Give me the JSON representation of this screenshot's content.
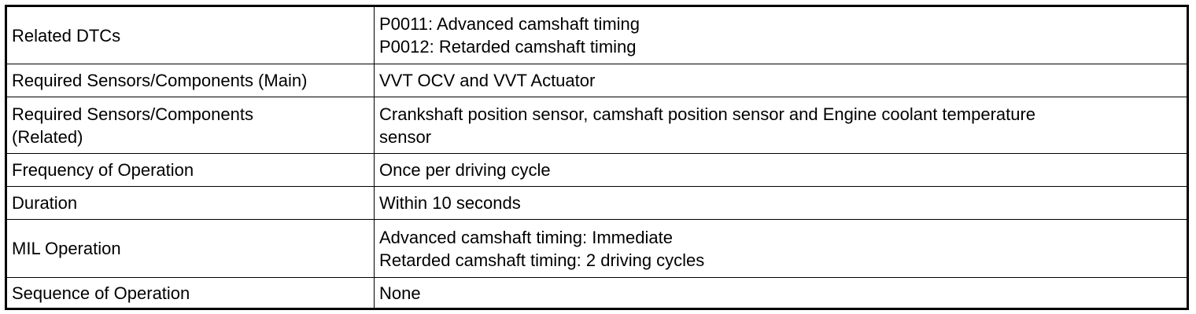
{
  "table": {
    "rows": [
      {
        "label": "Related DTCs",
        "value_lines": [
          "P0011: Advanced camshaft timing",
          "P0012: Retarded camshaft timing"
        ]
      },
      {
        "label": "Required Sensors/Components (Main)",
        "value_lines": [
          "VVT OCV and VVT Actuator"
        ]
      },
      {
        "label_lines": [
          "Required Sensors/Components",
          "(Related)"
        ],
        "value_lines": [
          "Crankshaft position sensor, camshaft position sensor and Engine coolant temperature",
          "sensor"
        ]
      },
      {
        "label": "Frequency of Operation",
        "value_lines": [
          "Once per driving cycle"
        ]
      },
      {
        "label": "Duration",
        "value_lines": [
          "Within 10 seconds"
        ]
      },
      {
        "label": "MIL Operation",
        "value_lines": [
          "Advanced camshaft timing: Immediate",
          "Retarded camshaft timing: 2 driving cycles"
        ]
      },
      {
        "label": "Sequence of Operation",
        "value_lines": [
          "None"
        ]
      }
    ]
  }
}
